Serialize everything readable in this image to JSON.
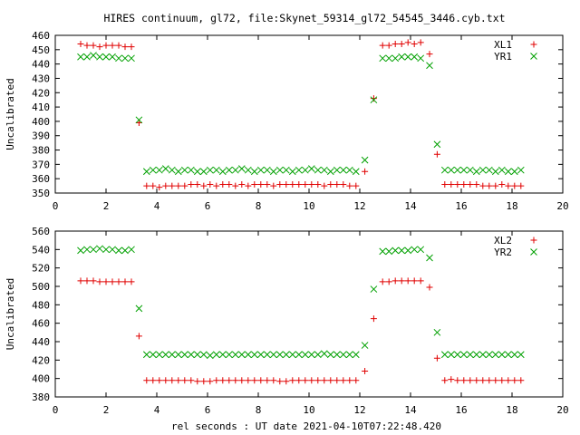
{
  "title": "HIRES continuum, gl72, file:Skynet_59314_gl72_54545_3446.cyb.txt",
  "xlabel": "rel seconds : UT date 2021-04-10T07:22:48.420",
  "chart_data": [
    {
      "type": "scatter",
      "ylabel": "Uncalibrated",
      "xlim": [
        0,
        20
      ],
      "ylim": [
        350,
        460
      ],
      "xticks": [
        0,
        2,
        4,
        6,
        8,
        10,
        12,
        14,
        16,
        18,
        20
      ],
      "yticks": [
        350,
        360,
        370,
        380,
        390,
        400,
        410,
        420,
        430,
        440,
        450,
        460
      ],
      "legend": "top-right",
      "series": [
        {
          "name": "XL1",
          "marker": "plus",
          "color": "#e00000",
          "x": [
            1.0,
            1.25,
            1.5,
            1.75,
            2.0,
            2.25,
            2.5,
            2.75,
            3.0,
            3.3,
            3.6,
            3.85,
            4.1,
            4.35,
            4.6,
            4.85,
            5.1,
            5.35,
            5.6,
            5.85,
            6.1,
            6.35,
            6.6,
            6.85,
            7.1,
            7.35,
            7.6,
            7.85,
            8.1,
            8.35,
            8.6,
            8.85,
            9.1,
            9.35,
            9.6,
            9.85,
            10.1,
            10.35,
            10.6,
            10.85,
            11.1,
            11.35,
            11.6,
            11.85,
            12.2,
            12.55,
            12.9,
            13.15,
            13.4,
            13.65,
            13.9,
            14.15,
            14.4,
            14.75,
            15.05,
            15.35,
            15.6,
            15.85,
            16.1,
            16.35,
            16.6,
            16.85,
            17.1,
            17.35,
            17.6,
            17.85,
            18.1,
            18.35
          ],
          "y": [
            454,
            453,
            453,
            452,
            453,
            453,
            453,
            452,
            452,
            399,
            355,
            355,
            354,
            355,
            355,
            355,
            355,
            356,
            356,
            355,
            356,
            355,
            356,
            356,
            355,
            356,
            355,
            356,
            356,
            356,
            355,
            356,
            356,
            356,
            356,
            356,
            356,
            356,
            355,
            356,
            356,
            356,
            355,
            355,
            365,
            416,
            453,
            453,
            454,
            454,
            455,
            454,
            455,
            447,
            377,
            356,
            356,
            356,
            356,
            356,
            356,
            355,
            355,
            355,
            356,
            355,
            355,
            355
          ]
        },
        {
          "name": "YR1",
          "marker": "cross",
          "color": "#00a000",
          "x": [
            1.0,
            1.25,
            1.5,
            1.75,
            2.0,
            2.25,
            2.5,
            2.75,
            3.0,
            3.3,
            3.6,
            3.85,
            4.1,
            4.35,
            4.6,
            4.85,
            5.1,
            5.35,
            5.6,
            5.85,
            6.1,
            6.35,
            6.6,
            6.85,
            7.1,
            7.35,
            7.6,
            7.85,
            8.1,
            8.35,
            8.6,
            8.85,
            9.1,
            9.35,
            9.6,
            9.85,
            10.1,
            10.35,
            10.6,
            10.85,
            11.1,
            11.35,
            11.6,
            11.85,
            12.2,
            12.55,
            12.9,
            13.15,
            13.4,
            13.65,
            13.9,
            14.15,
            14.4,
            14.75,
            15.05,
            15.35,
            15.6,
            15.85,
            16.1,
            16.35,
            16.6,
            16.85,
            17.1,
            17.35,
            17.6,
            17.85,
            18.1,
            18.35
          ],
          "y": [
            445,
            445,
            446,
            445,
            445,
            445,
            444,
            444,
            444,
            401,
            365,
            366,
            366,
            367,
            366,
            365,
            366,
            366,
            365,
            365,
            366,
            366,
            365,
            366,
            366,
            367,
            366,
            365,
            366,
            366,
            365,
            366,
            366,
            365,
            366,
            366,
            367,
            366,
            366,
            365,
            366,
            366,
            366,
            365,
            373,
            415,
            444,
            444,
            444,
            445,
            445,
            445,
            444,
            439,
            384,
            366,
            366,
            366,
            366,
            366,
            365,
            366,
            366,
            365,
            366,
            365,
            365,
            366
          ]
        }
      ]
    },
    {
      "type": "scatter",
      "ylabel": "Uncalibrated",
      "xlim": [
        0,
        20
      ],
      "ylim": [
        380,
        560
      ],
      "xticks": [
        0,
        2,
        4,
        6,
        8,
        10,
        12,
        14,
        16,
        18,
        20
      ],
      "yticks": [
        380,
        400,
        420,
        440,
        460,
        480,
        500,
        520,
        540,
        560
      ],
      "legend": "top-right",
      "series": [
        {
          "name": "XL2",
          "marker": "plus",
          "color": "#e00000",
          "x": [
            1.0,
            1.25,
            1.5,
            1.75,
            2.0,
            2.25,
            2.5,
            2.75,
            3.0,
            3.3,
            3.6,
            3.85,
            4.1,
            4.35,
            4.6,
            4.85,
            5.1,
            5.35,
            5.6,
            5.85,
            6.1,
            6.35,
            6.6,
            6.85,
            7.1,
            7.35,
            7.6,
            7.85,
            8.1,
            8.35,
            8.6,
            8.85,
            9.1,
            9.35,
            9.6,
            9.85,
            10.1,
            10.35,
            10.6,
            10.85,
            11.1,
            11.35,
            11.6,
            11.85,
            12.2,
            12.55,
            12.9,
            13.15,
            13.4,
            13.65,
            13.9,
            14.15,
            14.4,
            14.75,
            15.05,
            15.35,
            15.6,
            15.85,
            16.1,
            16.35,
            16.6,
            16.85,
            17.1,
            17.35,
            17.6,
            17.85,
            18.1,
            18.35
          ],
          "y": [
            506,
            506,
            506,
            505,
            505,
            505,
            505,
            505,
            505,
            446,
            398,
            398,
            398,
            398,
            398,
            398,
            398,
            398,
            397,
            397,
            397,
            398,
            398,
            398,
            398,
            398,
            398,
            398,
            398,
            398,
            398,
            397,
            397,
            398,
            398,
            398,
            398,
            398,
            398,
            398,
            398,
            398,
            398,
            398,
            408,
            465,
            505,
            505,
            506,
            506,
            506,
            506,
            506,
            499,
            422,
            398,
            399,
            398,
            398,
            398,
            398,
            398,
            398,
            398,
            398,
            398,
            398,
            398
          ]
        },
        {
          "name": "YR2",
          "marker": "cross",
          "color": "#00a000",
          "x": [
            1.0,
            1.25,
            1.5,
            1.75,
            2.0,
            2.25,
            2.5,
            2.75,
            3.0,
            3.3,
            3.6,
            3.85,
            4.1,
            4.35,
            4.6,
            4.85,
            5.1,
            5.35,
            5.6,
            5.85,
            6.1,
            6.35,
            6.6,
            6.85,
            7.1,
            7.35,
            7.6,
            7.85,
            8.1,
            8.35,
            8.6,
            8.85,
            9.1,
            9.35,
            9.6,
            9.85,
            10.1,
            10.35,
            10.6,
            10.85,
            11.1,
            11.35,
            11.6,
            11.85,
            12.2,
            12.55,
            12.9,
            13.15,
            13.4,
            13.65,
            13.9,
            14.15,
            14.4,
            14.75,
            15.05,
            15.35,
            15.6,
            15.85,
            16.1,
            16.35,
            16.6,
            16.85,
            17.1,
            17.35,
            17.6,
            17.85,
            18.1,
            18.35
          ],
          "y": [
            539,
            540,
            540,
            541,
            540,
            540,
            539,
            539,
            540,
            476,
            426,
            426,
            426,
            426,
            426,
            426,
            426,
            426,
            426,
            426,
            425,
            426,
            426,
            426,
            426,
            426,
            426,
            426,
            426,
            426,
            426,
            426,
            426,
            426,
            426,
            426,
            426,
            426,
            427,
            426,
            426,
            426,
            426,
            426,
            436,
            497,
            538,
            538,
            539,
            539,
            539,
            540,
            540,
            531,
            450,
            426,
            426,
            426,
            426,
            426,
            426,
            426,
            426,
            426,
            426,
            426,
            426,
            426
          ]
        }
      ]
    }
  ]
}
